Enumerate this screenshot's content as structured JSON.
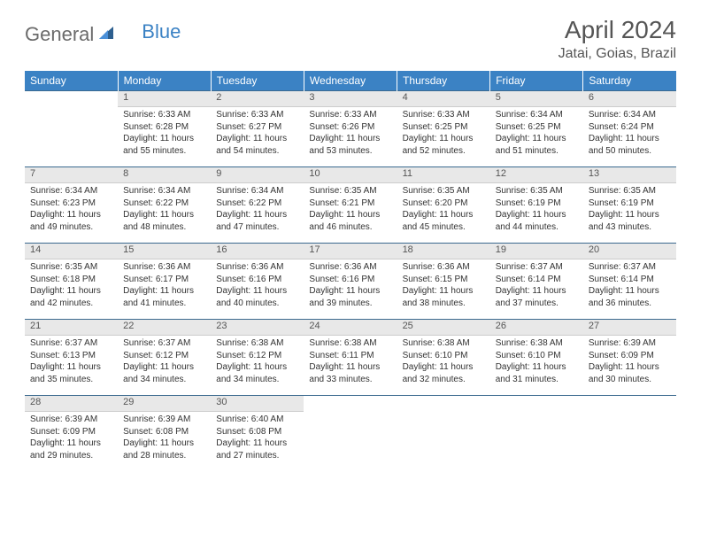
{
  "logo": {
    "text1": "General",
    "text2": "Blue"
  },
  "title": "April 2024",
  "location": "Jatai, Goias, Brazil",
  "colors": {
    "header_bg": "#3b82c4",
    "header_text": "#ffffff",
    "daynum_bg": "#e8e8e8",
    "border_top": "#3b6a8f",
    "text": "#333333",
    "title_text": "#555555"
  },
  "weekdays": [
    "Sunday",
    "Monday",
    "Tuesday",
    "Wednesday",
    "Thursday",
    "Friday",
    "Saturday"
  ],
  "weeks": [
    {
      "nums": [
        "",
        "1",
        "2",
        "3",
        "4",
        "5",
        "6"
      ],
      "cells": [
        null,
        {
          "sunrise": "Sunrise: 6:33 AM",
          "sunset": "Sunset: 6:28 PM",
          "day1": "Daylight: 11 hours",
          "day2": "and 55 minutes."
        },
        {
          "sunrise": "Sunrise: 6:33 AM",
          "sunset": "Sunset: 6:27 PM",
          "day1": "Daylight: 11 hours",
          "day2": "and 54 minutes."
        },
        {
          "sunrise": "Sunrise: 6:33 AM",
          "sunset": "Sunset: 6:26 PM",
          "day1": "Daylight: 11 hours",
          "day2": "and 53 minutes."
        },
        {
          "sunrise": "Sunrise: 6:33 AM",
          "sunset": "Sunset: 6:25 PM",
          "day1": "Daylight: 11 hours",
          "day2": "and 52 minutes."
        },
        {
          "sunrise": "Sunrise: 6:34 AM",
          "sunset": "Sunset: 6:25 PM",
          "day1": "Daylight: 11 hours",
          "day2": "and 51 minutes."
        },
        {
          "sunrise": "Sunrise: 6:34 AM",
          "sunset": "Sunset: 6:24 PM",
          "day1": "Daylight: 11 hours",
          "day2": "and 50 minutes."
        }
      ]
    },
    {
      "nums": [
        "7",
        "8",
        "9",
        "10",
        "11",
        "12",
        "13"
      ],
      "cells": [
        {
          "sunrise": "Sunrise: 6:34 AM",
          "sunset": "Sunset: 6:23 PM",
          "day1": "Daylight: 11 hours",
          "day2": "and 49 minutes."
        },
        {
          "sunrise": "Sunrise: 6:34 AM",
          "sunset": "Sunset: 6:22 PM",
          "day1": "Daylight: 11 hours",
          "day2": "and 48 minutes."
        },
        {
          "sunrise": "Sunrise: 6:34 AM",
          "sunset": "Sunset: 6:22 PM",
          "day1": "Daylight: 11 hours",
          "day2": "and 47 minutes."
        },
        {
          "sunrise": "Sunrise: 6:35 AM",
          "sunset": "Sunset: 6:21 PM",
          "day1": "Daylight: 11 hours",
          "day2": "and 46 minutes."
        },
        {
          "sunrise": "Sunrise: 6:35 AM",
          "sunset": "Sunset: 6:20 PM",
          "day1": "Daylight: 11 hours",
          "day2": "and 45 minutes."
        },
        {
          "sunrise": "Sunrise: 6:35 AM",
          "sunset": "Sunset: 6:19 PM",
          "day1": "Daylight: 11 hours",
          "day2": "and 44 minutes."
        },
        {
          "sunrise": "Sunrise: 6:35 AM",
          "sunset": "Sunset: 6:19 PM",
          "day1": "Daylight: 11 hours",
          "day2": "and 43 minutes."
        }
      ]
    },
    {
      "nums": [
        "14",
        "15",
        "16",
        "17",
        "18",
        "19",
        "20"
      ],
      "cells": [
        {
          "sunrise": "Sunrise: 6:35 AM",
          "sunset": "Sunset: 6:18 PM",
          "day1": "Daylight: 11 hours",
          "day2": "and 42 minutes."
        },
        {
          "sunrise": "Sunrise: 6:36 AM",
          "sunset": "Sunset: 6:17 PM",
          "day1": "Daylight: 11 hours",
          "day2": "and 41 minutes."
        },
        {
          "sunrise": "Sunrise: 6:36 AM",
          "sunset": "Sunset: 6:16 PM",
          "day1": "Daylight: 11 hours",
          "day2": "and 40 minutes."
        },
        {
          "sunrise": "Sunrise: 6:36 AM",
          "sunset": "Sunset: 6:16 PM",
          "day1": "Daylight: 11 hours",
          "day2": "and 39 minutes."
        },
        {
          "sunrise": "Sunrise: 6:36 AM",
          "sunset": "Sunset: 6:15 PM",
          "day1": "Daylight: 11 hours",
          "day2": "and 38 minutes."
        },
        {
          "sunrise": "Sunrise: 6:37 AM",
          "sunset": "Sunset: 6:14 PM",
          "day1": "Daylight: 11 hours",
          "day2": "and 37 minutes."
        },
        {
          "sunrise": "Sunrise: 6:37 AM",
          "sunset": "Sunset: 6:14 PM",
          "day1": "Daylight: 11 hours",
          "day2": "and 36 minutes."
        }
      ]
    },
    {
      "nums": [
        "21",
        "22",
        "23",
        "24",
        "25",
        "26",
        "27"
      ],
      "cells": [
        {
          "sunrise": "Sunrise: 6:37 AM",
          "sunset": "Sunset: 6:13 PM",
          "day1": "Daylight: 11 hours",
          "day2": "and 35 minutes."
        },
        {
          "sunrise": "Sunrise: 6:37 AM",
          "sunset": "Sunset: 6:12 PM",
          "day1": "Daylight: 11 hours",
          "day2": "and 34 minutes."
        },
        {
          "sunrise": "Sunrise: 6:38 AM",
          "sunset": "Sunset: 6:12 PM",
          "day1": "Daylight: 11 hours",
          "day2": "and 34 minutes."
        },
        {
          "sunrise": "Sunrise: 6:38 AM",
          "sunset": "Sunset: 6:11 PM",
          "day1": "Daylight: 11 hours",
          "day2": "and 33 minutes."
        },
        {
          "sunrise": "Sunrise: 6:38 AM",
          "sunset": "Sunset: 6:10 PM",
          "day1": "Daylight: 11 hours",
          "day2": "and 32 minutes."
        },
        {
          "sunrise": "Sunrise: 6:38 AM",
          "sunset": "Sunset: 6:10 PM",
          "day1": "Daylight: 11 hours",
          "day2": "and 31 minutes."
        },
        {
          "sunrise": "Sunrise: 6:39 AM",
          "sunset": "Sunset: 6:09 PM",
          "day1": "Daylight: 11 hours",
          "day2": "and 30 minutes."
        }
      ]
    },
    {
      "nums": [
        "28",
        "29",
        "30",
        "",
        "",
        "",
        ""
      ],
      "cells": [
        {
          "sunrise": "Sunrise: 6:39 AM",
          "sunset": "Sunset: 6:09 PM",
          "day1": "Daylight: 11 hours",
          "day2": "and 29 minutes."
        },
        {
          "sunrise": "Sunrise: 6:39 AM",
          "sunset": "Sunset: 6:08 PM",
          "day1": "Daylight: 11 hours",
          "day2": "and 28 minutes."
        },
        {
          "sunrise": "Sunrise: 6:40 AM",
          "sunset": "Sunset: 6:08 PM",
          "day1": "Daylight: 11 hours",
          "day2": "and 27 minutes."
        },
        null,
        null,
        null,
        null
      ]
    }
  ]
}
